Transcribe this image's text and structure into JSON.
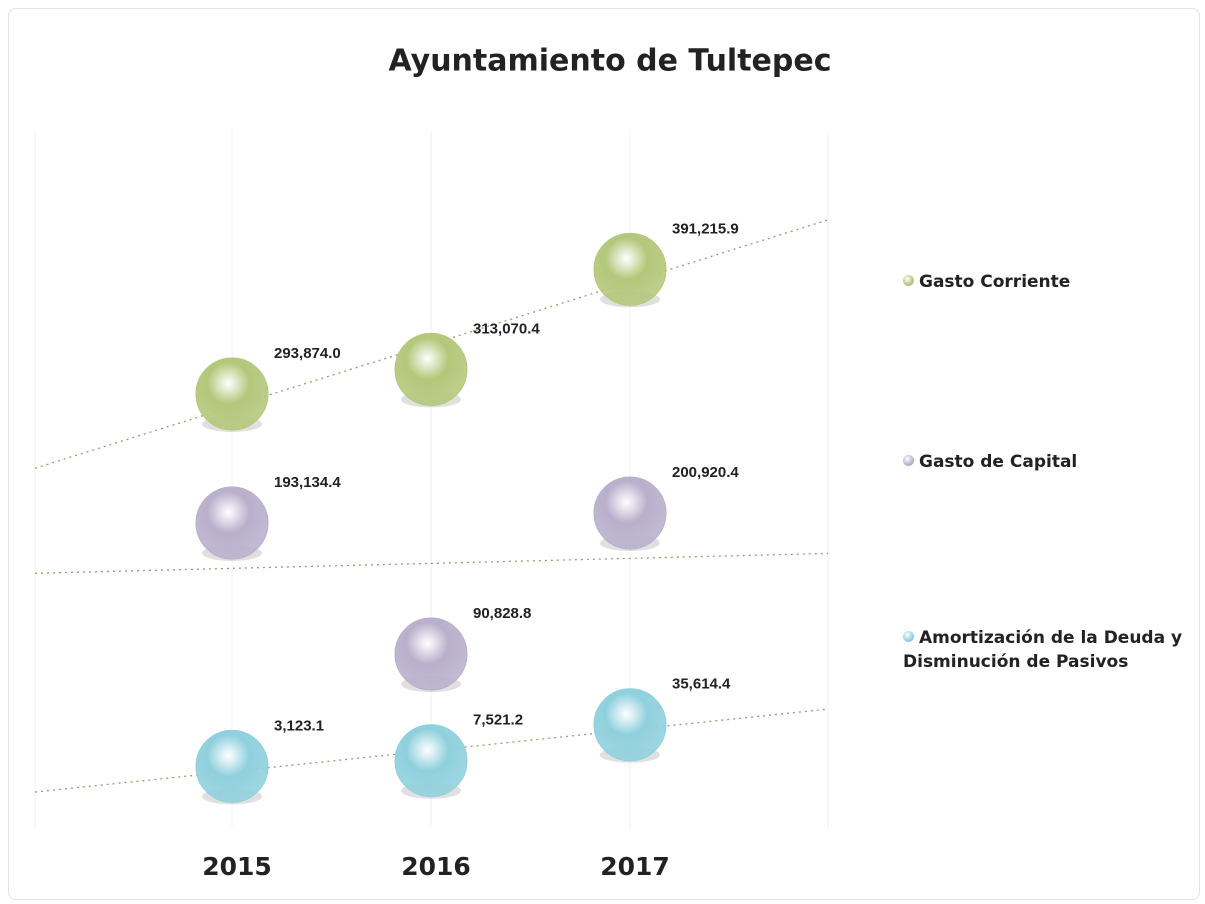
{
  "chart_data": {
    "type": "bubble",
    "title": "Ayuntamiento de Tultepec",
    "categories": [
      "2015",
      "2016",
      "2017"
    ],
    "series": [
      {
        "name": "Gasto Corriente",
        "color": "#b3c77a",
        "values": [
          293874.0,
          313070.4,
          391215.9
        ],
        "value_labels": [
          "293,874.0",
          "313,070.4",
          "391,215.9"
        ]
      },
      {
        "name": "Gasto de Capital",
        "color": "#b9afcc",
        "values": [
          193134.4,
          90828.8,
          200920.4
        ],
        "value_labels": [
          "193,134.4",
          "90,828.8",
          "200,920.4"
        ]
      },
      {
        "name": "Amortización de la Deuda y Disminución de Pasivos",
        "color": "#8fd0dd",
        "values": [
          3123.1,
          7521.2,
          35614.4
        ],
        "value_labels": [
          "3,123.1",
          "7,521.2",
          "35,614.4"
        ]
      }
    ],
    "ylim": [
      -45000,
      500000
    ],
    "trendline": true,
    "legend": "right"
  }
}
